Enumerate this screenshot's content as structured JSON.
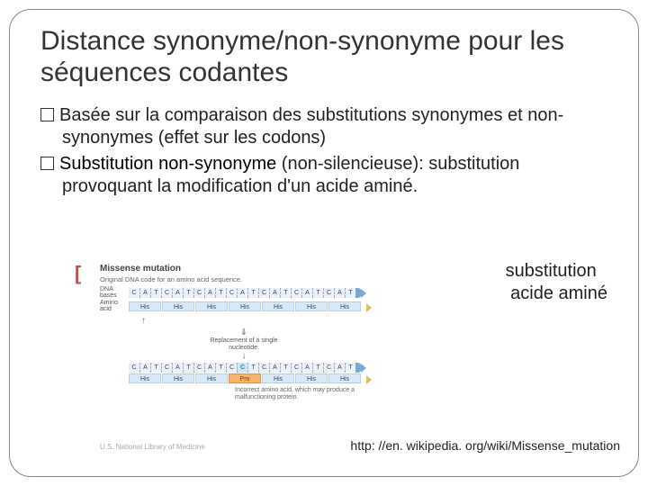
{
  "title": "Distance synonyme/non-synonyme pour les séquences codantes",
  "bullets": {
    "b1": "Basée sur la comparaison des substitutions synonymes et non-synonymes (effet sur les codons)",
    "b2_term": "Substitution non-synonyme",
    "b2_rest": " (non-silencieuse): substitution provoquant la modification d'un acide aminé.",
    "b3_right_line1": "substitution",
    "b3_right_line2": "acide aminé"
  },
  "diagram": {
    "missense_label": "Missense mutation",
    "sub_label": "Original DNA code for an amino acid sequence.",
    "dna_label": "DNA\nbases",
    "aa_label": "Amino\nacid",
    "bases_top": [
      "C",
      "A",
      "T",
      "C",
      "A",
      "T",
      "C",
      "A",
      "T",
      "C",
      "A",
      "T",
      "C",
      "A",
      "T",
      "C",
      "A",
      "T",
      "C",
      "A",
      "T"
    ],
    "aa_top": [
      "His",
      "His",
      "His",
      "His",
      "His",
      "His",
      "His"
    ],
    "arrow_up": "↑",
    "replace_text": "Replacement of a single nucleotide.",
    "bases_bot": [
      "C",
      "A",
      "T",
      "C",
      "A",
      "T",
      "C",
      "A",
      "T",
      "C",
      "C",
      "T",
      "C",
      "A",
      "T",
      "C",
      "A",
      "T",
      "C",
      "A",
      "T"
    ],
    "mut_index": 10,
    "aa_bot": [
      "His",
      "His",
      "His",
      "Pro",
      "His",
      "His",
      "His"
    ],
    "pro_index": 3,
    "incorrect_note": "Incorrect amino acid, which may produce a malfunctioning protein.",
    "nlm": "U.S. National Library of Medicine"
  },
  "url": "http: //en. wikipedia. org/wiki/Missense_mutation",
  "colors": {
    "base_bg": "#eaf1f8",
    "aa_bg": "#d8e8f4",
    "pro_bg": "#f4b56a"
  }
}
